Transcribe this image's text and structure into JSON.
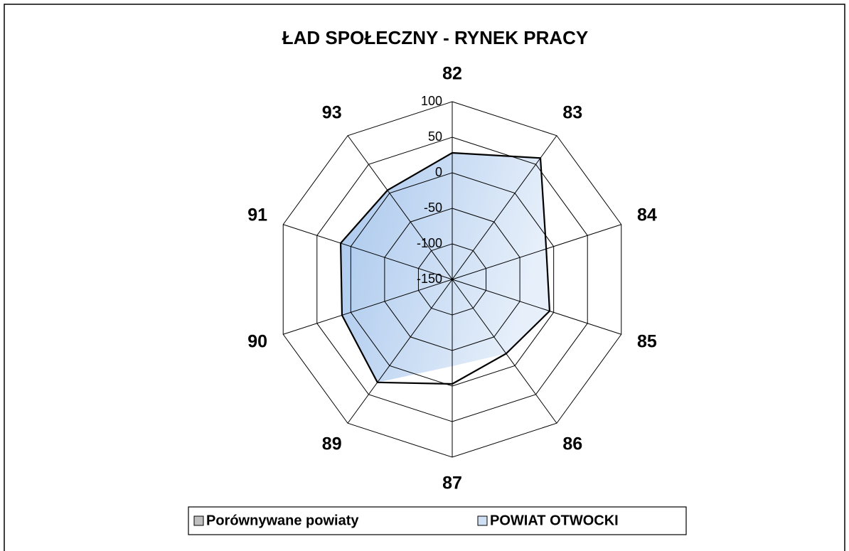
{
  "chart_data": {
    "type": "radar",
    "title": "ŁAD SPOŁECZNY - RYNEK PRACY",
    "categories": [
      "82",
      "83",
      "84",
      "85",
      "86",
      "87",
      "89",
      "90",
      "91",
      "93"
    ],
    "series": [
      {
        "name": "Porównywane powiaty",
        "color": "#c0c0c0",
        "values": [
          28,
          61,
          -11,
          -6,
          -21,
          -3,
          29,
          13,
          15,
          5
        ]
      },
      {
        "name": "POWIAT OTWOCKI",
        "color": "#cfe0f5",
        "values": [
          28,
          61,
          -11,
          -6,
          -21,
          -28,
          29,
          13,
          15,
          5
        ]
      }
    ],
    "ylim": [
      -150,
      100
    ],
    "yticks": [
      -150,
      -100,
      -50,
      0,
      50,
      100
    ],
    "grid": true,
    "legend": "bottom"
  }
}
